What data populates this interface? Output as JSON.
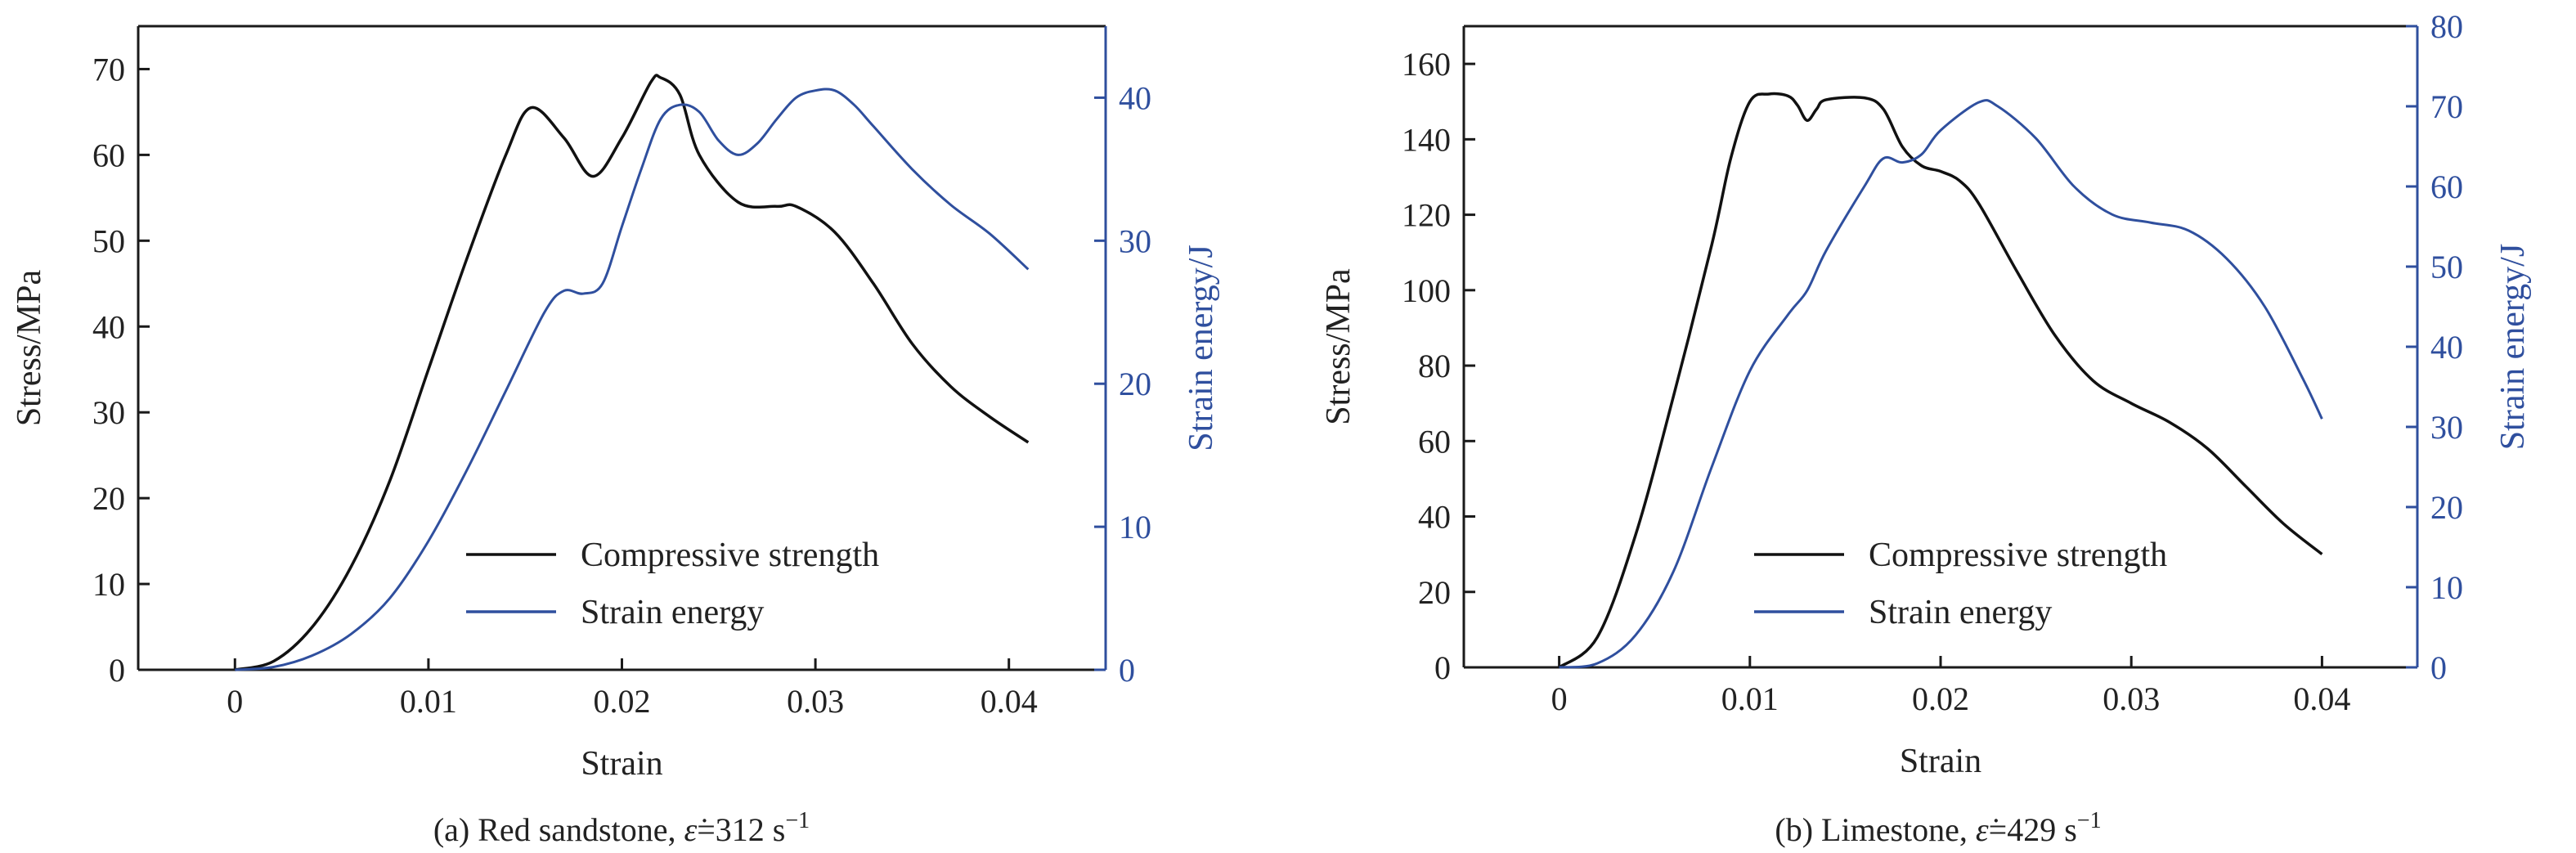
{
  "colors": {
    "stress": "#111111",
    "energy": "#2f4f9e",
    "axis": "#1a1a1a"
  },
  "chart_data": [
    {
      "type": "line",
      "caption": {
        "prefix": "(a) Red sandstone, ",
        "symbol": "ε̇",
        "rate": "=312 s",
        "exp": "−1"
      },
      "xlabel": "Strain",
      "ylabel": "Stress/MPa",
      "y2label": "Strain energy/J",
      "xlim": [
        -0.005,
        0.045
      ],
      "ylim": [
        0,
        75
      ],
      "y2lim": [
        0,
        45
      ],
      "xticks": [
        0,
        0.01,
        0.02,
        0.03,
        0.04
      ],
      "xtick_labels": [
        "0",
        "0.01",
        "0.02",
        "0.03",
        "0.04"
      ],
      "yticks": [
        0,
        10,
        20,
        30,
        40,
        50,
        60,
        70
      ],
      "ytick_labels": [
        "0",
        "10",
        "20",
        "30",
        "40",
        "50",
        "60",
        "70"
      ],
      "y2ticks": [
        0,
        10,
        20,
        30,
        40
      ],
      "y2tick_labels": [
        "0",
        "10",
        "20",
        "30",
        "40"
      ],
      "legend": {
        "placement": "bottom-center",
        "entries": [
          "Compressive strength",
          "Strain energy"
        ]
      },
      "series": [
        {
          "name": "Compressive strength",
          "axis": "left",
          "x": [
            0,
            0.002,
            0.004,
            0.006,
            0.008,
            0.01,
            0.012,
            0.014,
            0.0153,
            0.017,
            0.0185,
            0.02,
            0.0215,
            0.022,
            0.023,
            0.024,
            0.026,
            0.028,
            0.029,
            0.031,
            0.033,
            0.035,
            0.037,
            0.039,
            0.041
          ],
          "y": [
            0,
            1,
            5,
            12,
            22,
            35,
            48,
            60,
            65.5,
            62,
            57.5,
            62,
            68.5,
            69,
            67,
            60,
            54.5,
            54,
            54,
            51,
            45,
            38,
            33,
            29.5,
            26.5
          ]
        },
        {
          "name": "Strain energy",
          "axis": "right",
          "x": [
            0,
            0.002,
            0.004,
            0.006,
            0.008,
            0.01,
            0.012,
            0.014,
            0.016,
            0.017,
            0.018,
            0.019,
            0.02,
            0.021,
            0.022,
            0.023,
            0.024,
            0.025,
            0.026,
            0.027,
            0.028,
            0.029,
            0.03,
            0.031,
            0.032,
            0.033,
            0.035,
            0.037,
            0.039,
            0.041
          ],
          "y": [
            0,
            0.2,
            1,
            2.5,
            5,
            9,
            14,
            19.5,
            25,
            26.5,
            26.3,
            27,
            31,
            35,
            38.5,
            39.5,
            39,
            37,
            36,
            36.8,
            38.5,
            40,
            40.5,
            40.5,
            39.5,
            38,
            35,
            32.5,
            30.5,
            28
          ]
        }
      ]
    },
    {
      "type": "line",
      "caption": {
        "prefix": "(b) Limestone, ",
        "symbol": "ε̇",
        "rate": "=429 s",
        "exp": "−1"
      },
      "xlabel": "Strain",
      "ylabel": "Stress/MPa",
      "y2label": "Strain energy/J",
      "xlim": [
        -0.005,
        0.045
      ],
      "ylim": [
        0,
        170
      ],
      "y2lim": [
        0,
        80
      ],
      "xticks": [
        0,
        0.01,
        0.02,
        0.03,
        0.04
      ],
      "xtick_labels": [
        "0",
        "0.01",
        "0.02",
        "0.03",
        "0.04"
      ],
      "yticks": [
        0,
        20,
        40,
        60,
        80,
        100,
        120,
        140,
        160
      ],
      "ytick_labels": [
        "0",
        "20",
        "40",
        "60",
        "80",
        "100",
        "120",
        "140",
        "160"
      ],
      "y2ticks": [
        0,
        10,
        20,
        30,
        40,
        50,
        60,
        70,
        80
      ],
      "y2tick_labels": [
        "0",
        "10",
        "20",
        "30",
        "40",
        "50",
        "60",
        "70",
        "80"
      ],
      "legend": {
        "placement": "bottom-center",
        "entries": [
          "Compressive strength",
          "Strain energy"
        ]
      },
      "series": [
        {
          "name": "Compressive strength",
          "axis": "left",
          "x": [
            0,
            0.002,
            0.004,
            0.006,
            0.008,
            0.009,
            0.01,
            0.011,
            0.012,
            0.0125,
            0.013,
            0.0135,
            0.014,
            0.016,
            0.017,
            0.018,
            0.019,
            0.02,
            0.021,
            0.022,
            0.024,
            0.026,
            0.028,
            0.03,
            0.032,
            0.034,
            0.036,
            0.038,
            0.04
          ],
          "y": [
            0,
            8,
            35,
            72,
            112,
            135,
            150,
            152,
            151.5,
            149,
            145,
            148,
            150.5,
            151,
            148,
            138,
            133,
            131.5,
            129,
            123,
            105,
            88,
            76,
            70,
            65,
            58,
            48,
            38,
            30
          ]
        },
        {
          "name": "Strain energy",
          "axis": "right",
          "x": [
            0,
            0.002,
            0.004,
            0.006,
            0.008,
            0.01,
            0.012,
            0.013,
            0.014,
            0.016,
            0.017,
            0.018,
            0.019,
            0.02,
            0.022,
            0.023,
            0.025,
            0.027,
            0.029,
            0.031,
            0.033,
            0.035,
            0.037,
            0.039,
            0.04
          ],
          "y": [
            0,
            0.5,
            4,
            12,
            25,
            37,
            44,
            47,
            52,
            60,
            63.5,
            63,
            64,
            67,
            70.5,
            70,
            66,
            60,
            56.5,
            55.5,
            54.5,
            51,
            45,
            36,
            31
          ]
        }
      ]
    }
  ]
}
